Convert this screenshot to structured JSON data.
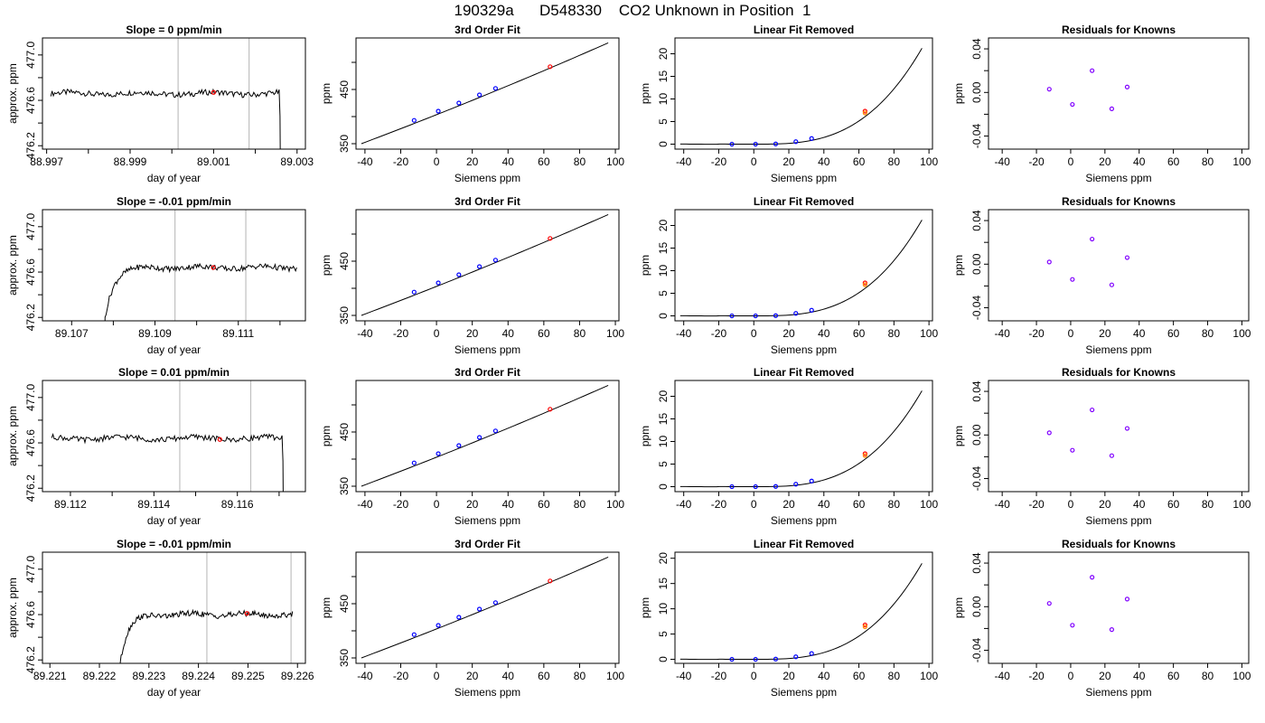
{
  "figure_title": "190329a      D548330    CO2 Unknown in Position  1",
  "colors": {
    "line": "#000000",
    "known_point": "#0000ff",
    "unknown_point": "#ff0000",
    "residual_point": "#8000ff",
    "window_line": "#c0c0c0",
    "fit_unknown_point": "#ff8c00"
  },
  "chart_data": [
    {
      "type": "line",
      "panel": "time-series",
      "row": 1,
      "title": "Slope =  0  ppm/min",
      "xlabel": "day of year",
      "ylabel": "approx. ppm",
      "xlim": [
        88.9969,
        89.0032
      ],
      "ylim": [
        476.17,
        477.15
      ],
      "xticks": [
        88.997,
        88.998,
        88.999,
        89.0,
        89.001,
        89.002,
        89.003
      ],
      "xtick_labels": [
        "88.997",
        "",
        "88.999",
        "",
        "89.001",
        "",
        "89.003"
      ],
      "yticks": [
        476.2,
        476.6,
        477.0
      ],
      "ytick_labels": [
        "476.2",
        "476.6",
        "477.0"
      ],
      "ytick_labels_major": [
        "476.2",
        "476.6",
        "477.0"
      ],
      "x_start": 88.9971,
      "x_end": 89.00257,
      "plateau": 476.66,
      "step": {
        "at": 89.00252,
        "direction": "down"
      },
      "window": [
        89.00015,
        89.00185
      ],
      "unknown_point": {
        "x": 89.001,
        "y": 476.67
      },
      "minor_yticks": [
        476.4,
        476.8
      ]
    },
    {
      "type": "line",
      "panel": "calibration",
      "row": 1,
      "title": "3rd Order Fit",
      "xlabel": "Siemens ppm",
      "ylabel": "ppm",
      "xlim": [
        -45,
        102
      ],
      "ylim": [
        340,
        545
      ],
      "xticks": [
        -40,
        -20,
        0,
        20,
        40,
        60,
        80,
        100
      ],
      "yticks": [
        350,
        400,
        450,
        500
      ],
      "ytick_labels": [
        "350",
        "",
        "450",
        ""
      ],
      "curve": {
        "x0": -42,
        "x1": 96,
        "y0": 350,
        "y1": 536
      },
      "known_points": [
        {
          "x": -12.5,
          "y": 393
        },
        {
          "x": 1,
          "y": 410
        },
        {
          "x": 12.5,
          "y": 425
        },
        {
          "x": 24,
          "y": 440
        },
        {
          "x": 33,
          "y": 452
        }
      ],
      "unknown_point": {
        "x": 63.5,
        "y": 492
      }
    },
    {
      "type": "line",
      "panel": "linear-removed",
      "row": 1,
      "title": "Linear Fit Removed",
      "xlabel": "Siemens ppm",
      "ylabel": "ppm",
      "xlim": [
        -45,
        102
      ],
      "ylim": [
        -1.1,
        23.5
      ],
      "xticks": [
        -40,
        -20,
        0,
        20,
        40,
        60,
        80,
        100
      ],
      "yticks": [
        0,
        5,
        10,
        15,
        20
      ],
      "curve_cubic": {
        "a": 2.45e-05,
        "c": 0.001,
        "x0": 2.0,
        "x_from": -42,
        "x_to": 96
      },
      "known_points": [
        {
          "x": -12.5,
          "y": 0.0
        },
        {
          "x": 1,
          "y": 0.0
        },
        {
          "x": 12.5,
          "y": 0.05
        },
        {
          "x": 24,
          "y": 0.55
        },
        {
          "x": 33,
          "y": 1.25
        }
      ],
      "unknown_point": {
        "x": 63.5,
        "y": 7.3
      }
    },
    {
      "type": "scatter",
      "panel": "residuals",
      "row": 1,
      "title": "Residuals for Knowns",
      "xlabel": "Siemens ppm",
      "ylabel": "ppm",
      "xlim": [
        -48,
        104
      ],
      "ylim": [
        -0.052,
        0.05
      ],
      "xticks": [
        -40,
        -20,
        0,
        20,
        40,
        60,
        80,
        100
      ],
      "yticks": [
        -0.04,
        0.0,
        0.04
      ],
      "ytick_labels": [
        "-0.04",
        "0.00",
        "0.04"
      ],
      "minor_yticks": [
        -0.02,
        0.02
      ],
      "points": [
        {
          "x": -12.5,
          "y": 0.003
        },
        {
          "x": 1,
          "y": -0.011
        },
        {
          "x": 12.5,
          "y": 0.02
        },
        {
          "x": 24,
          "y": -0.015
        },
        {
          "x": 33,
          "y": 0.005
        }
      ]
    },
    {
      "type": "line",
      "panel": "time-series",
      "row": 2,
      "title": "Slope =  -0.01  ppm/min",
      "xlabel": "day of year",
      "ylabel": "approx. ppm",
      "xlim": [
        89.1063,
        89.11261
      ],
      "ylim": [
        476.17,
        477.15
      ],
      "xticks": [
        89.107,
        89.108,
        89.109,
        89.11,
        89.111,
        89.112
      ],
      "xtick_labels": [
        "89.107",
        "",
        "89.109",
        "",
        "89.111",
        ""
      ],
      "yticks": [
        476.2,
        476.6,
        477.0
      ],
      "ytick_labels": [
        "476.2",
        "476.6",
        "477.0"
      ],
      "minor_yticks": [
        476.4,
        476.8
      ],
      "x_start": 89.10775,
      "x_end": 89.1124,
      "plateau": 476.64,
      "step": {
        "at": 89.10775,
        "direction": "up"
      },
      "window": [
        89.10948,
        89.11118
      ],
      "unknown_point": {
        "x": 89.1104,
        "y": 476.64
      }
    },
    {
      "type": "line",
      "panel": "calibration",
      "row": 2,
      "title": "3rd Order Fit",
      "xlabel": "Siemens ppm",
      "ylabel": "ppm",
      "xlim": [
        -45,
        102
      ],
      "ylim": [
        340,
        545
      ],
      "xticks": [
        -40,
        -20,
        0,
        20,
        40,
        60,
        80,
        100
      ],
      "yticks": [
        350,
        400,
        450,
        500
      ],
      "ytick_labels": [
        "350",
        "",
        "450",
        ""
      ],
      "curve": {
        "x0": -42,
        "x1": 96,
        "y0": 350,
        "y1": 536
      },
      "known_points": [
        {
          "x": -12.5,
          "y": 393
        },
        {
          "x": 1,
          "y": 410
        },
        {
          "x": 12.5,
          "y": 425
        },
        {
          "x": 24,
          "y": 440
        },
        {
          "x": 33,
          "y": 452
        }
      ],
      "unknown_point": {
        "x": 63.5,
        "y": 492
      }
    },
    {
      "type": "line",
      "panel": "linear-removed",
      "row": 2,
      "title": "Linear Fit Removed",
      "xlabel": "Siemens ppm",
      "ylabel": "ppm",
      "xlim": [
        -45,
        102
      ],
      "ylim": [
        -1.1,
        23.5
      ],
      "xticks": [
        -40,
        -20,
        0,
        20,
        40,
        60,
        80,
        100
      ],
      "yticks": [
        0,
        5,
        10,
        15,
        20
      ],
      "curve_cubic": {
        "a": 2.45e-05,
        "c": 0.001,
        "x0": 2.0,
        "x_from": -42,
        "x_to": 96
      },
      "known_points": [
        {
          "x": -12.5,
          "y": 0.0
        },
        {
          "x": 1,
          "y": 0.0
        },
        {
          "x": 12.5,
          "y": 0.05
        },
        {
          "x": 24,
          "y": 0.55
        },
        {
          "x": 33,
          "y": 1.25
        }
      ],
      "unknown_point": {
        "x": 63.5,
        "y": 7.3
      }
    },
    {
      "type": "scatter",
      "panel": "residuals",
      "row": 2,
      "title": "Residuals for Knowns",
      "xlabel": "Siemens ppm",
      "ylabel": "ppm",
      "xlim": [
        -48,
        104
      ],
      "ylim": [
        -0.052,
        0.05
      ],
      "xticks": [
        -40,
        -20,
        0,
        20,
        40,
        60,
        80,
        100
      ],
      "yticks": [
        -0.04,
        0.0,
        0.04
      ],
      "ytick_labels": [
        "-0.04",
        "0.00",
        "0.04"
      ],
      "minor_yticks": [
        -0.02,
        0.02
      ],
      "points": [
        {
          "x": -12.5,
          "y": 0.002
        },
        {
          "x": 1,
          "y": -0.014
        },
        {
          "x": 12.5,
          "y": 0.023
        },
        {
          "x": 24,
          "y": -0.019
        },
        {
          "x": 33,
          "y": 0.006
        }
      ]
    },
    {
      "type": "line",
      "panel": "time-series",
      "row": 3,
      "title": "Slope =  0.01  ppm/min",
      "xlabel": "day of year",
      "ylabel": "approx. ppm",
      "xlim": [
        89.11133,
        89.11763
      ],
      "ylim": [
        476.17,
        477.15
      ],
      "xticks": [
        89.112,
        89.113,
        89.114,
        89.115,
        89.116,
        89.117
      ],
      "xtick_labels": [
        "89.112",
        "",
        "89.114",
        "",
        "89.116",
        ""
      ],
      "yticks": [
        476.2,
        476.6,
        477.0
      ],
      "ytick_labels": [
        "476.2",
        "476.6",
        "477.0"
      ],
      "minor_yticks": [
        476.4,
        476.8
      ],
      "x_start": 89.11155,
      "x_end": 89.11707,
      "plateau": 476.64,
      "step": {
        "at": 89.11702,
        "direction": "down"
      },
      "window": [
        89.11462,
        89.11632
      ],
      "unknown_point": {
        "x": 89.11558,
        "y": 476.63
      }
    },
    {
      "type": "line",
      "panel": "calibration",
      "row": 3,
      "title": "3rd Order Fit",
      "xlabel": "Siemens ppm",
      "ylabel": "ppm",
      "xlim": [
        -45,
        102
      ],
      "ylim": [
        340,
        545
      ],
      "xticks": [
        -40,
        -20,
        0,
        20,
        40,
        60,
        80,
        100
      ],
      "yticks": [
        350,
        400,
        450,
        500
      ],
      "ytick_labels": [
        "350",
        "",
        "450",
        ""
      ],
      "curve": {
        "x0": -42,
        "x1": 96,
        "y0": 350,
        "y1": 536
      },
      "known_points": [
        {
          "x": -12.5,
          "y": 393
        },
        {
          "x": 1,
          "y": 410
        },
        {
          "x": 12.5,
          "y": 425
        },
        {
          "x": 24,
          "y": 440
        },
        {
          "x": 33,
          "y": 452
        }
      ],
      "unknown_point": {
        "x": 63.5,
        "y": 492
      }
    },
    {
      "type": "line",
      "panel": "linear-removed",
      "row": 3,
      "title": "Linear Fit Removed",
      "xlabel": "Siemens ppm",
      "ylabel": "ppm",
      "xlim": [
        -45,
        102
      ],
      "ylim": [
        -1.1,
        23.5
      ],
      "xticks": [
        -40,
        -20,
        0,
        20,
        40,
        60,
        80,
        100
      ],
      "yticks": [
        0,
        5,
        10,
        15,
        20
      ],
      "curve_cubic": {
        "a": 2.45e-05,
        "c": 0.001,
        "x0": 2.0,
        "x_from": -42,
        "x_to": 96
      },
      "known_points": [
        {
          "x": -12.5,
          "y": 0.0
        },
        {
          "x": 1,
          "y": 0.0
        },
        {
          "x": 12.5,
          "y": 0.05
        },
        {
          "x": 24,
          "y": 0.55
        },
        {
          "x": 33,
          "y": 1.25
        }
      ],
      "unknown_point": {
        "x": 63.5,
        "y": 7.3
      }
    },
    {
      "type": "scatter",
      "panel": "residuals",
      "row": 3,
      "title": "Residuals for Knowns",
      "xlabel": "Siemens ppm",
      "ylabel": "ppm",
      "xlim": [
        -48,
        104
      ],
      "ylim": [
        -0.052,
        0.05
      ],
      "xticks": [
        -40,
        -20,
        0,
        20,
        40,
        60,
        80,
        100
      ],
      "yticks": [
        -0.04,
        0.0,
        0.04
      ],
      "ytick_labels": [
        "-0.04",
        "0.00",
        "0.04"
      ],
      "minor_yticks": [
        -0.02,
        0.02
      ],
      "points": [
        {
          "x": -12.5,
          "y": 0.002
        },
        {
          "x": 1,
          "y": -0.014
        },
        {
          "x": 12.5,
          "y": 0.023
        },
        {
          "x": 24,
          "y": -0.019
        },
        {
          "x": 33,
          "y": 0.006
        }
      ]
    },
    {
      "type": "line",
      "panel": "time-series",
      "row": 4,
      "title": "Slope =  -0.01  ppm/min",
      "xlabel": "day of year",
      "ylabel": "approx. ppm",
      "xlim": [
        89.22085,
        89.22616
      ],
      "ylim": [
        476.17,
        477.15
      ],
      "xticks": [
        89.221,
        89.222,
        89.223,
        89.224,
        89.225,
        89.226
      ],
      "xtick_labels": [
        "89.221",
        "89.222",
        "89.223",
        "89.224",
        "89.225",
        "89.226"
      ],
      "yticks": [
        476.2,
        476.6,
        477.0
      ],
      "ytick_labels": [
        "476.2",
        "476.6",
        "477.0"
      ],
      "minor_yticks": [
        476.4,
        476.8
      ],
      "x_start": 89.22238,
      "x_end": 89.2259,
      "plateau": 476.6,
      "step": {
        "at": 89.22238,
        "direction": "up"
      },
      "window": [
        89.22417,
        89.22587
      ],
      "unknown_point": {
        "x": 89.22498,
        "y": 476.61
      }
    },
    {
      "type": "line",
      "panel": "calibration",
      "row": 4,
      "title": "3rd Order Fit",
      "xlabel": "Siemens ppm",
      "ylabel": "ppm",
      "xlim": [
        -45,
        102
      ],
      "ylim": [
        340,
        545
      ],
      "xticks": [
        -40,
        -20,
        0,
        20,
        40,
        60,
        80,
        100
      ],
      "yticks": [
        350,
        400,
        450,
        500
      ],
      "ytick_labels": [
        "350",
        "",
        "450",
        ""
      ],
      "curve": {
        "x0": -42,
        "x1": 96,
        "y0": 350,
        "y1": 536
      },
      "known_points": [
        {
          "x": -12.5,
          "y": 393
        },
        {
          "x": 1,
          "y": 410
        },
        {
          "x": 12.5,
          "y": 425
        },
        {
          "x": 24,
          "y": 440
        },
        {
          "x": 33,
          "y": 452
        }
      ],
      "unknown_point": {
        "x": 63.5,
        "y": 492
      }
    },
    {
      "type": "line",
      "panel": "linear-removed",
      "row": 4,
      "title": "Linear Fit Removed",
      "xlabel": "Siemens ppm",
      "ylabel": "ppm",
      "xlim": [
        -45,
        102
      ],
      "ylim": [
        -0.8,
        21.2
      ],
      "xticks": [
        -40,
        -20,
        0,
        20,
        40,
        60,
        80,
        100
      ],
      "yticks": [
        0,
        5,
        10,
        15,
        20
      ],
      "curve_cubic": {
        "a": 2.18e-05,
        "c": 0.001,
        "x0": 2.0,
        "x_from": -42,
        "x_to": 96
      },
      "known_points": [
        {
          "x": -12.5,
          "y": 0.0
        },
        {
          "x": 1,
          "y": 0.0
        },
        {
          "x": 12.5,
          "y": 0.05
        },
        {
          "x": 24,
          "y": 0.5
        },
        {
          "x": 33,
          "y": 1.15
        }
      ],
      "unknown_point": {
        "x": 63.5,
        "y": 6.8
      }
    },
    {
      "type": "scatter",
      "panel": "residuals",
      "row": 4,
      "title": "Residuals for Knowns",
      "xlabel": "Siemens ppm",
      "ylabel": "ppm",
      "xlim": [
        -48,
        104
      ],
      "ylim": [
        -0.052,
        0.05
      ],
      "xticks": [
        -40,
        -20,
        0,
        20,
        40,
        60,
        80,
        100
      ],
      "yticks": [
        -0.04,
        0.0,
        0.04
      ],
      "ytick_labels": [
        "-0.04",
        "0.00",
        "0.04"
      ],
      "minor_yticks": [
        -0.02,
        0.02
      ],
      "points": [
        {
          "x": -12.5,
          "y": 0.003
        },
        {
          "x": 1,
          "y": -0.017
        },
        {
          "x": 12.5,
          "y": 0.027
        },
        {
          "x": 24,
          "y": -0.021
        },
        {
          "x": 33,
          "y": 0.007
        }
      ]
    }
  ]
}
